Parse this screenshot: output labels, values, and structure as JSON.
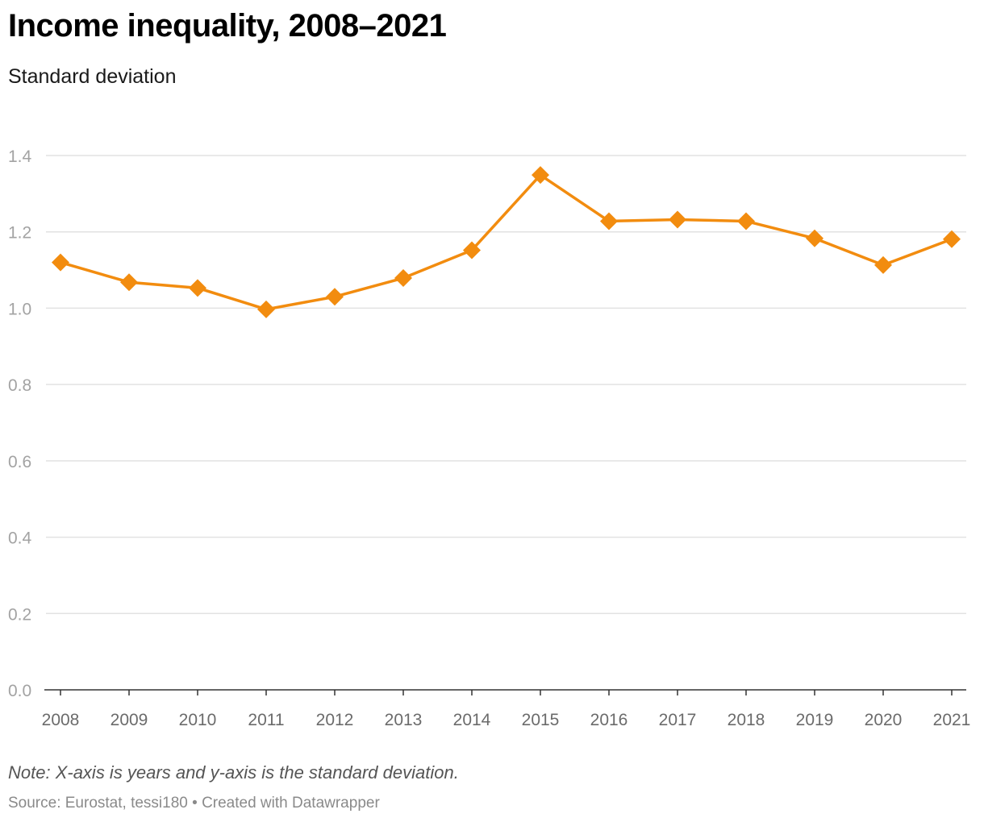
{
  "header": {
    "title": "Income inequality, 2008–2021",
    "subtitle": "Standard deviation"
  },
  "footer": {
    "note": "Note: X-axis is years and y-axis is the standard deviation.",
    "source_prefix": "Source: Eurostat, tessi180",
    "separator": " • ",
    "credit": "Created with Datawrapper"
  },
  "colors": {
    "line": "#f28c0f",
    "grid": "#e2e2e2",
    "axis": "#333333"
  },
  "chart_data": {
    "type": "line",
    "title": "Income inequality, 2008–2021",
    "subtitle": "Standard deviation",
    "xlabel": "",
    "ylabel": "",
    "x": [
      "2008",
      "2009",
      "2010",
      "2011",
      "2012",
      "2013",
      "2014",
      "2015",
      "2016",
      "2017",
      "2018",
      "2019",
      "2020",
      "2021"
    ],
    "series": [
      {
        "values": [
          1.12,
          1.068,
          1.053,
          0.997,
          1.03,
          1.079,
          1.152,
          1.349,
          1.228,
          1.232,
          1.228,
          1.183,
          1.113,
          1.181
        ],
        "marker": "diamond"
      }
    ],
    "yticks": [
      "0.0",
      "0.2",
      "0.4",
      "0.6",
      "0.8",
      "1.0",
      "1.2",
      "1.4"
    ],
    "ylim": [
      0,
      1.4
    ],
    "grid": true,
    "legend": "none"
  }
}
